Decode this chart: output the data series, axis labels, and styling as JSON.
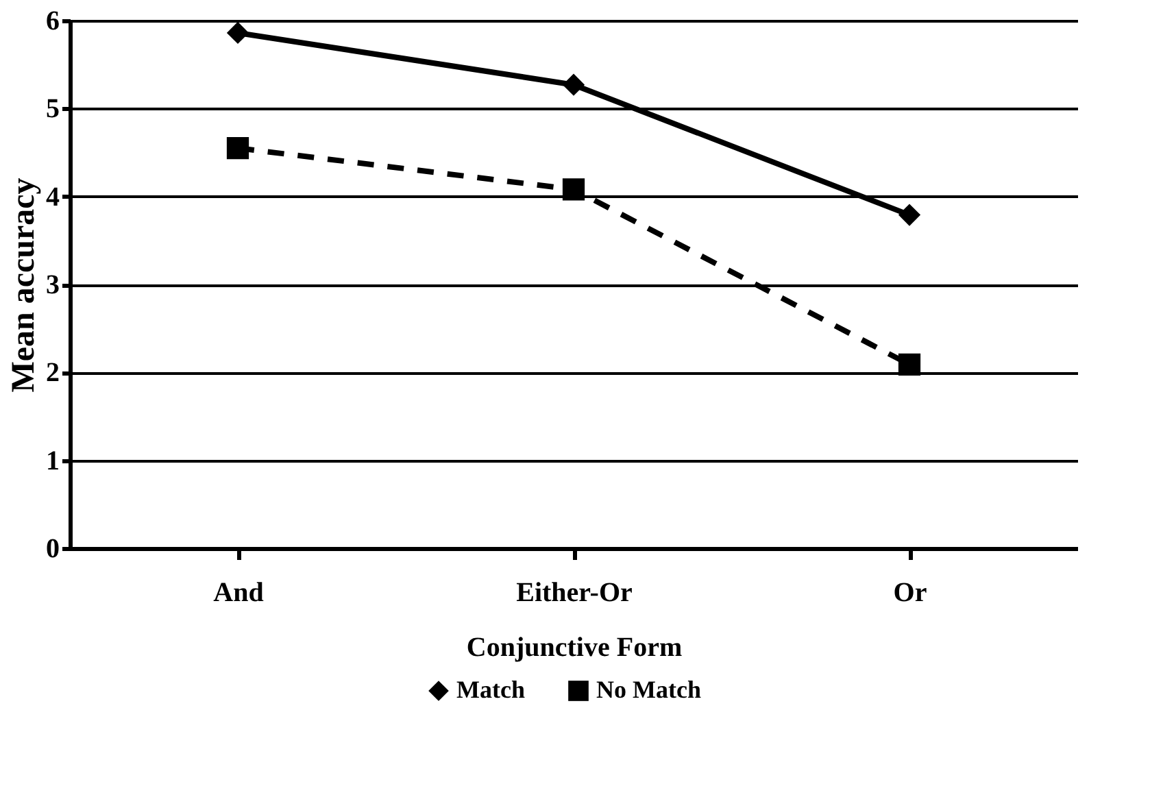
{
  "chart_data": {
    "type": "line",
    "xlabel": "Conjunctive Form",
    "ylabel": "Mean accuracy",
    "categories": [
      "And",
      "Either-Or",
      "Or"
    ],
    "series": [
      {
        "name": "Match",
        "color": "#000000",
        "values": [
          5.86,
          5.27,
          3.79
        ],
        "marker": "diamond",
        "line_style": "solid"
      },
      {
        "name": "No Match",
        "color": "#000000",
        "values": [
          4.55,
          4.08,
          2.09
        ],
        "marker": "square",
        "line_style": "dashed"
      }
    ],
    "ylim": [
      0,
      6
    ],
    "yticks": [
      0,
      1,
      2,
      3,
      4,
      5,
      6
    ],
    "grid": "y",
    "legend": "bottom"
  }
}
